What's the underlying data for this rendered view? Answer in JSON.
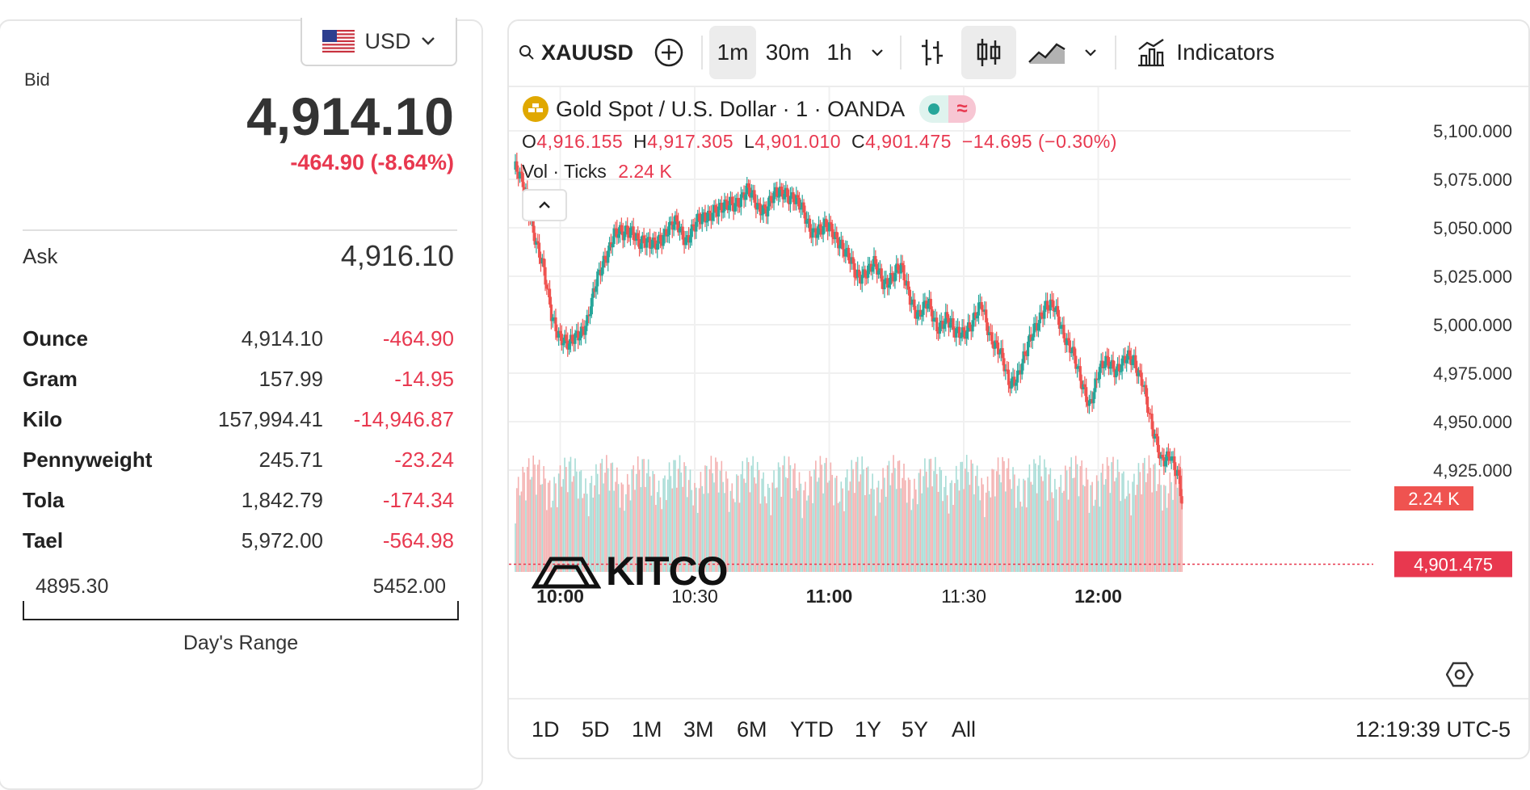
{
  "currency": {
    "label": "USD",
    "icon": "us-flag-icon"
  },
  "quote": {
    "bid_label": "Bid",
    "bid": "4,914.10",
    "change": "-464.90 (-8.64%)",
    "ask_label": "Ask",
    "ask": "4,916.10"
  },
  "units": [
    {
      "name": "Ounce",
      "price": "4,914.10",
      "change": "-464.90"
    },
    {
      "name": "Gram",
      "price": "157.99",
      "change": "-14.95"
    },
    {
      "name": "Kilo",
      "price": "157,994.41",
      "change": "-14,946.87"
    },
    {
      "name": "Pennyweight",
      "price": "245.71",
      "change": "-23.24"
    },
    {
      "name": "Tola",
      "price": "1,842.79",
      "change": "-174.34"
    },
    {
      "name": "Tael",
      "price": "5,972.00",
      "change": "-564.98"
    }
  ],
  "days_range": {
    "low": "4895.30",
    "high": "5452.00",
    "label": "Day's Range"
  },
  "toolbar": {
    "symbol": "XAUUSD",
    "intervals": [
      "1m",
      "30m",
      "1h"
    ],
    "active_interval": "1m",
    "indicators_label": "Indicators"
  },
  "legend": {
    "title": "Gold Spot / U.S. Dollar · 1 · OANDA",
    "o_label": "O",
    "o": "4,916.155",
    "h_label": "H",
    "h": "4,917.305",
    "l_label": "L",
    "l": "4,901.010",
    "c_label": "C",
    "c": "4,901.475",
    "change": "−14.695 (−0.30%)",
    "vol_label": "Vol · Ticks",
    "vol": "2.24 K"
  },
  "watermark": "KITCO",
  "ranges": [
    "1D",
    "5D",
    "1M",
    "3M",
    "6M",
    "YTD",
    "1Y",
    "5Y",
    "All"
  ],
  "clock": "12:19:39 UTC-5",
  "colors": {
    "up": "#26a69a",
    "down": "#ef5350",
    "negative_text": "#e8384f"
  },
  "chart_data": {
    "type": "candlestick",
    "title": "Gold Spot / U.S. Dollar · 1 · OANDA",
    "y_ticks": [
      "5,100.000",
      "5,075.000",
      "5,050.000",
      "5,025.000",
      "5,000.000",
      "4,975.000",
      "4,950.000",
      "4,925.000"
    ],
    "ylim": [
      4900,
      5110
    ],
    "x_ticks": [
      "10:00",
      "10:30",
      "11:00",
      "11:30",
      "12:00"
    ],
    "x_ticks_bold": [
      true,
      false,
      true,
      false,
      true
    ],
    "last_price_label": "4,901.475",
    "last_volume_label": "2.24 K",
    "last_price": 4901.475,
    "close_path": [
      [
        "09:50",
        5080
      ],
      [
        "09:52",
        5070
      ],
      [
        "09:54",
        5050
      ],
      [
        "09:56",
        5030
      ],
      [
        "09:58",
        5005
      ],
      [
        "10:00",
        4995
      ],
      [
        "10:02",
        4988
      ],
      [
        "10:04",
        4995
      ],
      [
        "10:06",
        5003
      ],
      [
        "10:08",
        5020
      ],
      [
        "10:10",
        5035
      ],
      [
        "10:12",
        5048
      ],
      [
        "10:14",
        5045
      ],
      [
        "10:16",
        5050
      ],
      [
        "10:18",
        5042
      ],
      [
        "10:20",
        5040
      ],
      [
        "10:22",
        5045
      ],
      [
        "10:24",
        5048
      ],
      [
        "10:26",
        5052
      ],
      [
        "10:28",
        5045
      ],
      [
        "10:30",
        5050
      ],
      [
        "10:32",
        5055
      ],
      [
        "10:34",
        5060
      ],
      [
        "10:36",
        5058
      ],
      [
        "10:38",
        5063
      ],
      [
        "10:40",
        5065
      ],
      [
        "10:42",
        5068
      ],
      [
        "10:44",
        5062
      ],
      [
        "10:46",
        5060
      ],
      [
        "10:48",
        5066
      ],
      [
        "10:50",
        5070
      ],
      [
        "10:52",
        5065
      ],
      [
        "10:54",
        5058
      ],
      [
        "10:56",
        5050
      ],
      [
        "10:58",
        5048
      ],
      [
        "11:00",
        5050
      ],
      [
        "11:02",
        5045
      ],
      [
        "11:04",
        5035
      ],
      [
        "11:06",
        5025
      ],
      [
        "11:08",
        5028
      ],
      [
        "11:10",
        5030
      ],
      [
        "11:12",
        5022
      ],
      [
        "11:14",
        5026
      ],
      [
        "11:16",
        5028
      ],
      [
        "11:18",
        5015
      ],
      [
        "11:20",
        5005
      ],
      [
        "11:22",
        5010
      ],
      [
        "11:24",
        5000
      ],
      [
        "11:26",
        5003
      ],
      [
        "11:28",
        4995
      ],
      [
        "11:30",
        4998
      ],
      [
        "11:32",
        5000
      ],
      [
        "11:34",
        5010
      ],
      [
        "11:36",
        4995
      ],
      [
        "11:38",
        4985
      ],
      [
        "11:40",
        4970
      ],
      [
        "11:42",
        4975
      ],
      [
        "11:44",
        4985
      ],
      [
        "11:46",
        5000
      ],
      [
        "11:48",
        5010
      ],
      [
        "11:50",
        5008
      ],
      [
        "11:52",
        4998
      ],
      [
        "11:54",
        4988
      ],
      [
        "11:56",
        4970
      ],
      [
        "11:58",
        4960
      ],
      [
        "12:00",
        4975
      ],
      [
        "12:02",
        4980
      ],
      [
        "12:04",
        4978
      ],
      [
        "12:06",
        4982
      ],
      [
        "12:08",
        4980
      ],
      [
        "12:10",
        4972
      ],
      [
        "12:12",
        4945
      ],
      [
        "12:14",
        4930
      ],
      [
        "12:16",
        4935
      ],
      [
        "12:18",
        4918
      ],
      [
        "12:19",
        4901.475
      ]
    ]
  }
}
